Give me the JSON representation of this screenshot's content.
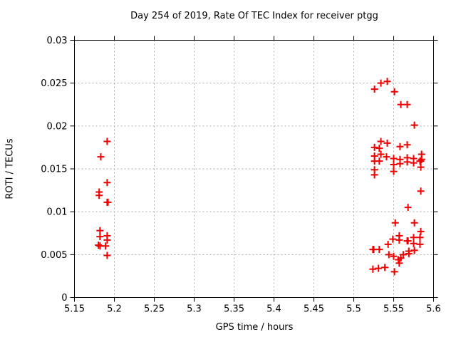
{
  "page": {
    "background": "#ffffff"
  },
  "chart_data": {
    "type": "scatter",
    "title": "Day 254 of 2019, Rate Of TEC Index for receiver ptgg",
    "xlabel": "GPS time / hours",
    "ylabel": "ROTI / TECUs",
    "xlim": [
      5.15,
      5.6
    ],
    "ylim": [
      0,
      0.03
    ],
    "grid": true,
    "legend": "none",
    "axis_color": "#000000",
    "grid_color": "#a8a8a8",
    "marker": {
      "shape": "plus",
      "color": "#ee0000",
      "size": 10,
      "stroke_width": 2
    },
    "xticks": [
      {
        "value": 5.15,
        "label": "5.15"
      },
      {
        "value": 5.2,
        "label": "5.2"
      },
      {
        "value": 5.25,
        "label": "5.25"
      },
      {
        "value": 5.3,
        "label": "5.3"
      },
      {
        "value": 5.35,
        "label": "5.35"
      },
      {
        "value": 5.4,
        "label": "5.4"
      },
      {
        "value": 5.45,
        "label": "5.45"
      },
      {
        "value": 5.5,
        "label": "5.5"
      },
      {
        "value": 5.55,
        "label": "5.55"
      },
      {
        "value": 5.6,
        "label": "5.6"
      }
    ],
    "yticks": [
      {
        "value": 0,
        "label": "0"
      },
      {
        "value": 0.005,
        "label": "0.005"
      },
      {
        "value": 0.01,
        "label": "0.01"
      },
      {
        "value": 0.015,
        "label": "0.015"
      },
      {
        "value": 0.02,
        "label": "0.02"
      },
      {
        "value": 0.025,
        "label": "0.025"
      },
      {
        "value": 0.03,
        "label": "0.03"
      }
    ],
    "series": [
      {
        "name": "ROTI",
        "points": [
          [
            5.191,
            0.0182
          ],
          [
            5.183,
            0.0164
          ],
          [
            5.191,
            0.0134
          ],
          [
            5.181,
            0.0123
          ],
          [
            5.181,
            0.0119
          ],
          [
            5.191,
            0.0111
          ],
          [
            5.192,
            0.0111
          ],
          [
            5.182,
            0.0078
          ],
          [
            5.182,
            0.0071
          ],
          [
            5.191,
            0.0072
          ],
          [
            5.191,
            0.0067
          ],
          [
            5.18,
            0.0061
          ],
          [
            5.182,
            0.006
          ],
          [
            5.189,
            0.006
          ],
          [
            5.191,
            0.0049
          ],
          [
            5.526,
            0.0243
          ],
          [
            5.534,
            0.025
          ],
          [
            5.542,
            0.0252
          ],
          [
            5.551,
            0.024
          ],
          [
            5.559,
            0.0225
          ],
          [
            5.567,
            0.0225
          ],
          [
            5.576,
            0.0201
          ],
          [
            5.534,
            0.0182
          ],
          [
            5.542,
            0.018
          ],
          [
            5.526,
            0.0175
          ],
          [
            5.532,
            0.0174
          ],
          [
            5.558,
            0.0176
          ],
          [
            5.567,
            0.0178
          ],
          [
            5.534,
            0.0167
          ],
          [
            5.526,
            0.0165
          ],
          [
            5.526,
            0.0159
          ],
          [
            5.532,
            0.0159
          ],
          [
            5.541,
            0.0164
          ],
          [
            5.55,
            0.0162
          ],
          [
            5.55,
            0.0155
          ],
          [
            5.558,
            0.0161
          ],
          [
            5.558,
            0.0156
          ],
          [
            5.567,
            0.0163
          ],
          [
            5.567,
            0.0158
          ],
          [
            5.575,
            0.0162
          ],
          [
            5.575,
            0.0157
          ],
          [
            5.583,
            0.0159
          ],
          [
            5.584,
            0.0159
          ],
          [
            5.585,
            0.0167
          ],
          [
            5.585,
            0.0161
          ],
          [
            5.526,
            0.0149
          ],
          [
            5.526,
            0.0143
          ],
          [
            5.55,
            0.0147
          ],
          [
            5.584,
            0.0152
          ],
          [
            5.584,
            0.0124
          ],
          [
            5.568,
            0.0105
          ],
          [
            5.552,
            0.0087
          ],
          [
            5.576,
            0.0087
          ],
          [
            5.584,
            0.0077
          ],
          [
            5.557,
            0.0072
          ],
          [
            5.557,
            0.0067
          ],
          [
            5.549,
            0.0068
          ],
          [
            5.543,
            0.0062
          ],
          [
            5.567,
            0.0066
          ],
          [
            5.568,
            0.0066
          ],
          [
            5.575,
            0.007
          ],
          [
            5.575,
            0.0063
          ],
          [
            5.583,
            0.007
          ],
          [
            5.583,
            0.0062
          ],
          [
            5.576,
            0.0055
          ],
          [
            5.569,
            0.0054
          ],
          [
            5.569,
            0.0051
          ],
          [
            5.562,
            0.005
          ],
          [
            5.559,
            0.0046
          ],
          [
            5.524,
            0.0056
          ],
          [
            5.525,
            0.0056
          ],
          [
            5.532,
            0.0056
          ],
          [
            5.544,
            0.005
          ],
          [
            5.55,
            0.0048
          ],
          [
            5.556,
            0.0044
          ],
          [
            5.557,
            0.004
          ],
          [
            5.524,
            0.0033
          ],
          [
            5.531,
            0.0034
          ],
          [
            5.539,
            0.0035
          ],
          [
            5.551,
            0.003
          ]
        ]
      }
    ]
  }
}
